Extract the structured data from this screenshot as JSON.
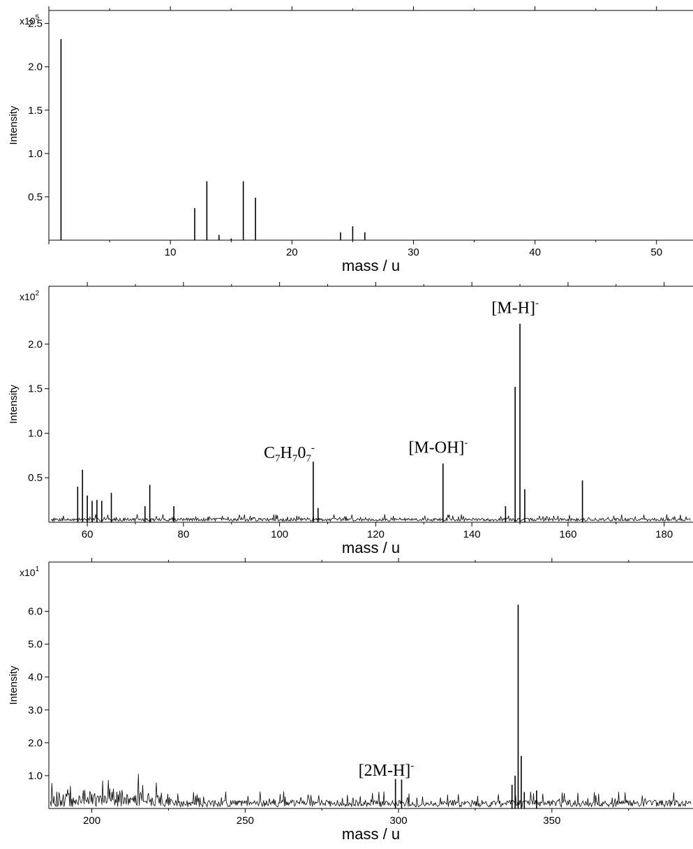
{
  "chart_data": [
    {
      "type": "bar",
      "xlabel": "mass / u",
      "ylabel": "Intensity",
      "scale_label": {
        "base": "x10",
        "exp": "5"
      },
      "xlim": [
        0,
        53
      ],
      "ylim": [
        0,
        2.65
      ],
      "x_ticks": [
        10,
        20,
        30,
        40,
        50
      ],
      "y_ticks": [
        "0.5",
        "1.0",
        "1.5",
        "2.0",
        "2.5"
      ],
      "peaks": [
        {
          "x": 1,
          "y": 2.32
        },
        {
          "x": 12,
          "y": 0.37
        },
        {
          "x": 13,
          "y": 0.68
        },
        {
          "x": 14,
          "y": 0.06
        },
        {
          "x": 15,
          "y": 0.02
        },
        {
          "x": 16,
          "y": 0.68
        },
        {
          "x": 17,
          "y": 0.49
        },
        {
          "x": 24,
          "y": 0.09
        },
        {
          "x": 25,
          "y": 0.16
        },
        {
          "x": 26,
          "y": 0.09
        }
      ],
      "noise": null,
      "annotations": []
    },
    {
      "type": "line",
      "xlabel": "mass / u",
      "ylabel": "Intensity",
      "scale_label": {
        "base": "x10",
        "exp": "2"
      },
      "xlim": [
        52,
        186
      ],
      "ylim": [
        0,
        2.65
      ],
      "x_ticks": [
        60,
        80,
        100,
        120,
        140,
        160,
        180
      ],
      "y_ticks": [
        "0.5",
        "1.0",
        "1.5",
        "2.0"
      ],
      "peaks": [
        {
          "x": 58,
          "y": 0.4
        },
        {
          "x": 59,
          "y": 0.59
        },
        {
          "x": 60,
          "y": 0.3
        },
        {
          "x": 61,
          "y": 0.24
        },
        {
          "x": 62,
          "y": 0.25
        },
        {
          "x": 63,
          "y": 0.24
        },
        {
          "x": 65,
          "y": 0.33
        },
        {
          "x": 72,
          "y": 0.18
        },
        {
          "x": 73,
          "y": 0.42
        },
        {
          "x": 78,
          "y": 0.18
        },
        {
          "x": 107,
          "y": 0.68
        },
        {
          "x": 108,
          "y": 0.16
        },
        {
          "x": 134,
          "y": 0.66
        },
        {
          "x": 147,
          "y": 0.18
        },
        {
          "x": 149,
          "y": 1.52
        },
        {
          "x": 150,
          "y": 2.23
        },
        {
          "x": 151,
          "y": 0.37
        },
        {
          "x": 163,
          "y": 0.47
        }
      ],
      "noise": {
        "base": 0.03,
        "amp": 0.05,
        "seed": 7
      },
      "annotations": [
        {
          "text": "C",
          "sub1": "7",
          "mid": "H",
          "sub2": "7",
          "mid2": "0",
          "sub3": "7",
          "sup": "-",
          "x": 102,
          "y": 0.72
        },
        {
          "text": "[M-OH]",
          "sup": "-",
          "x": 133,
          "y": 0.78
        },
        {
          "text": "[M-H]",
          "sup": "-",
          "x": 149,
          "y": 2.35
        }
      ]
    },
    {
      "type": "line",
      "xlabel": "mass / u",
      "ylabel": "Intensity",
      "scale_label": {
        "base": "x10",
        "exp": "1"
      },
      "xlim": [
        186,
        396
      ],
      "ylim": [
        0,
        7.5
      ],
      "x_ticks": [
        200,
        250,
        300,
        350
      ],
      "y_ticks": [
        "1.0",
        "2.0",
        "3.0",
        "4.0",
        "5.0",
        "6.0"
      ],
      "peaks": [
        {
          "x": 299,
          "y": 0.9
        },
        {
          "x": 301,
          "y": 0.88
        },
        {
          "x": 337,
          "y": 0.72
        },
        {
          "x": 338,
          "y": 1.0
        },
        {
          "x": 339,
          "y": 6.2
        },
        {
          "x": 340,
          "y": 1.6
        },
        {
          "x": 341,
          "y": 0.5
        },
        {
          "x": 345,
          "y": 0.55
        }
      ],
      "noise": {
        "base": 0.12,
        "amp": 0.3,
        "seed": 13,
        "loud_until": 226,
        "loud_amp": 0.85
      },
      "annotations": [
        {
          "text": "[2M-H]",
          "sup": "-",
          "x": 296,
          "y": 1.0
        }
      ]
    }
  ]
}
